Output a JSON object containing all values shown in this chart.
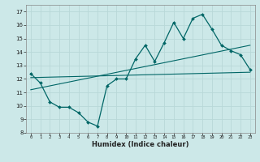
{
  "xlabel": "Humidex (Indice chaleur)",
  "bg_color": "#cce8e8",
  "grid_color": "#b8d8d8",
  "line_color": "#006666",
  "xlim": [
    -0.5,
    23.5
  ],
  "ylim": [
    8,
    17.5
  ],
  "xticks": [
    0,
    1,
    2,
    3,
    4,
    5,
    6,
    7,
    8,
    9,
    10,
    11,
    12,
    13,
    14,
    15,
    16,
    17,
    18,
    19,
    20,
    21,
    22,
    23
  ],
  "yticks": [
    8,
    9,
    10,
    11,
    12,
    13,
    14,
    15,
    16,
    17
  ],
  "main_x": [
    0,
    1,
    2,
    3,
    4,
    5,
    6,
    7,
    8,
    9,
    10,
    11,
    12,
    13,
    14,
    15,
    16,
    17,
    18,
    19,
    20,
    21,
    22,
    23
  ],
  "main_y": [
    12.4,
    11.7,
    10.3,
    9.9,
    9.9,
    9.5,
    8.8,
    8.5,
    11.5,
    12.0,
    12.0,
    13.5,
    14.5,
    13.3,
    14.7,
    16.2,
    15.0,
    16.5,
    16.8,
    15.7,
    14.5,
    14.1,
    13.8,
    12.7
  ],
  "line2_x": [
    0,
    23
  ],
  "line2_y": [
    12.1,
    12.5
  ],
  "line3_x": [
    0,
    23
  ],
  "line3_y": [
    11.2,
    14.5
  ]
}
